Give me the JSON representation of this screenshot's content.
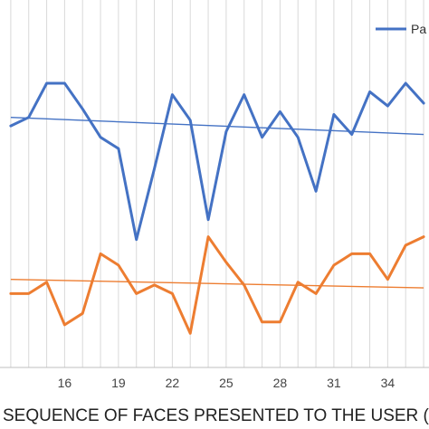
{
  "chart_data": {
    "type": "line",
    "xlabel": "SEQUENCE OF FACES PRESENTED TO THE USER (FRO",
    "ylabel": "",
    "title": "",
    "x": [
      13,
      14,
      15,
      16,
      17,
      18,
      19,
      20,
      21,
      22,
      23,
      24,
      25,
      26,
      27,
      28,
      29,
      30,
      31,
      32,
      33,
      34,
      35,
      36
    ],
    "x_tick_labels": [
      "16",
      "19",
      "22",
      "25",
      "28",
      "31",
      "34"
    ],
    "x_tick_values": [
      16,
      19,
      22,
      25,
      28,
      31,
      34
    ],
    "xlim": [
      12.4,
      36.3
    ],
    "ylim": [
      0,
      100
    ],
    "grid": "vertical",
    "legend_position": "top-right",
    "series": [
      {
        "name": "Pa",
        "color": "#4472C4",
        "values": [
          85,
          88,
          100,
          100,
          91,
          81,
          77,
          45,
          70,
          96,
          87,
          52,
          83,
          96,
          81,
          90,
          81,
          62,
          89,
          82,
          97,
          92,
          100,
          93
        ]
      },
      {
        "color": "#ED7D31",
        "values": [
          26,
          26,
          30,
          15,
          19,
          40,
          36,
          26,
          29,
          26,
          12,
          46,
          37,
          29,
          16,
          16,
          30,
          26,
          36,
          40,
          40,
          31,
          43,
          46
        ]
      }
    ],
    "trendlines": [
      {
        "series": 0,
        "color": "#4472C4",
        "start": 88,
        "end": 82
      },
      {
        "series": 1,
        "color": "#ED7D31",
        "start": 31,
        "end": 28
      }
    ]
  }
}
